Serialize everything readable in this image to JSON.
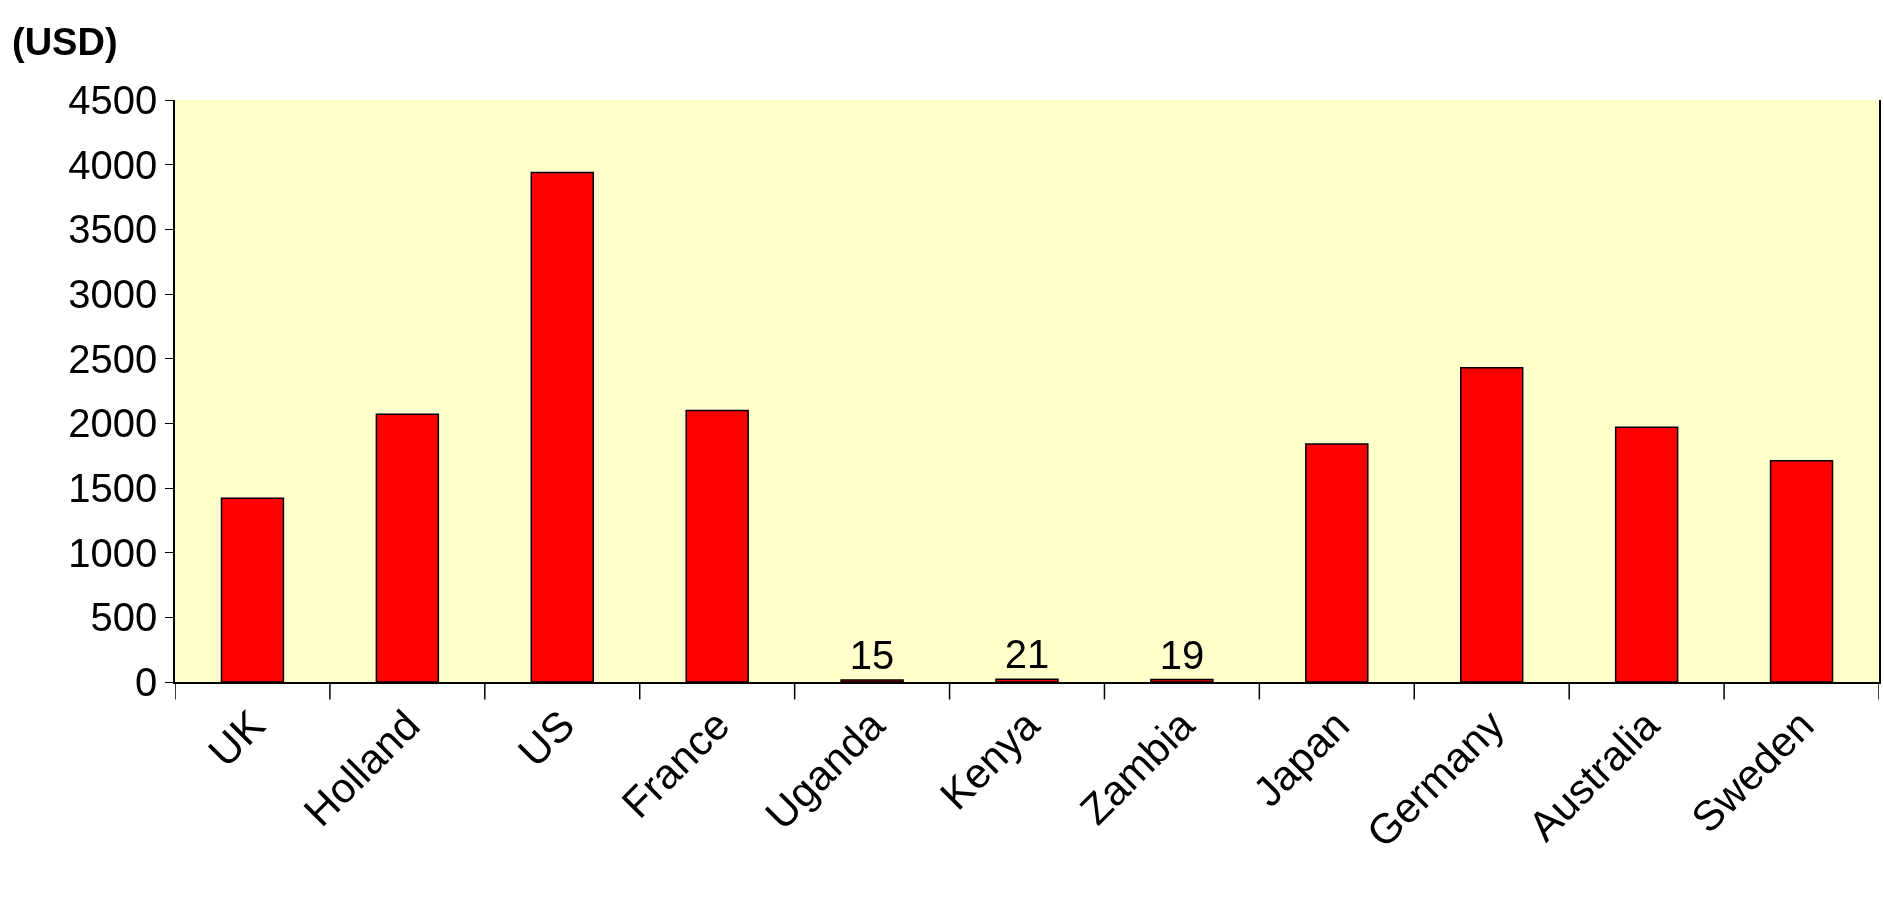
{
  "chart_data": {
    "type": "bar",
    "ylabel": "(USD)",
    "categories": [
      "UK",
      "Holland",
      "US",
      "France",
      "Uganda",
      "Kenya",
      "Zambia",
      "Japan",
      "Germany",
      "Australia",
      "Sweden"
    ],
    "values": [
      1420,
      2070,
      3940,
      2100,
      15,
      21,
      19,
      1840,
      2430,
      1970,
      1710
    ],
    "value_labels": [
      null,
      null,
      null,
      null,
      "15",
      "21",
      "19",
      null,
      null,
      null,
      null
    ],
    "color": "#ff0000",
    "ylim": [
      0,
      4500
    ],
    "yticks": [
      0,
      500,
      1000,
      1500,
      2000,
      2500,
      3000,
      3500,
      4000,
      4500
    ],
    "grid": false
  }
}
